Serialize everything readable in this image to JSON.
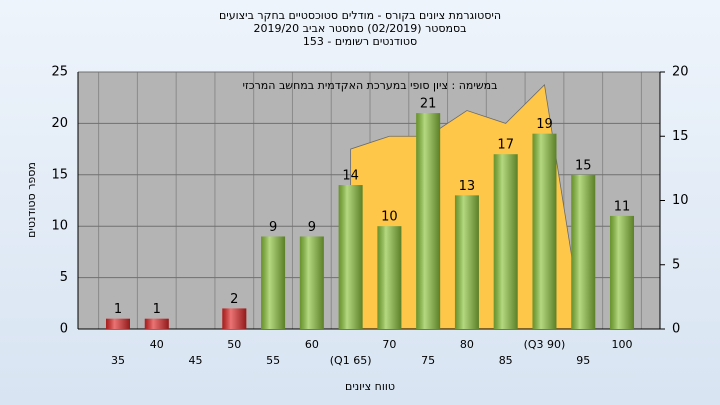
{
  "chart_data": {
    "type": "bar",
    "title": [
      "היסטוגרמת ציונים בקורס - מודלים סטוכסטיים בחקר ביצועים",
      "בסמסטר  (02/2019)  סמסטר אביב 2019/20",
      "סטודנטים רשומים - 153"
    ],
    "annotation": "במשימה : ציון סופי במערכת האקדמית במחשב המרכזי",
    "x_label": "טווח ציונים",
    "y_label": "מספר סטודנטים",
    "categories": [
      "35",
      "40",
      "45",
      "50",
      "55",
      "60",
      "(Q1 65)",
      "70",
      "75",
      "80",
      "85",
      "(Q3 90)",
      "95",
      "100"
    ],
    "values": [
      1,
      1,
      0,
      2,
      9,
      9,
      14,
      10,
      21,
      13,
      17,
      19,
      15,
      11
    ],
    "colors": [
      "#e02828",
      "#e02828",
      "#e02828",
      "#e02828",
      "#8cc43c",
      "#8cc43c",
      "#8cc43c",
      "#8cc43c",
      "#8cc43c",
      "#8cc43c",
      "#8cc43c",
      "#8cc43c",
      "#8cc43c",
      "#8cc43c"
    ],
    "area": {
      "axis": "y2",
      "color": "#ffc74a",
      "values": [
        null,
        null,
        null,
        null,
        null,
        null,
        14,
        15,
        15,
        17,
        16,
        19,
        0,
        null
      ]
    },
    "ylim": [
      0,
      25
    ],
    "yticks": [
      0,
      5,
      10,
      15,
      20,
      25
    ],
    "y2lim": [
      0,
      20
    ],
    "y2ticks": [
      0,
      5,
      10,
      15,
      20
    ],
    "grid": true
  }
}
